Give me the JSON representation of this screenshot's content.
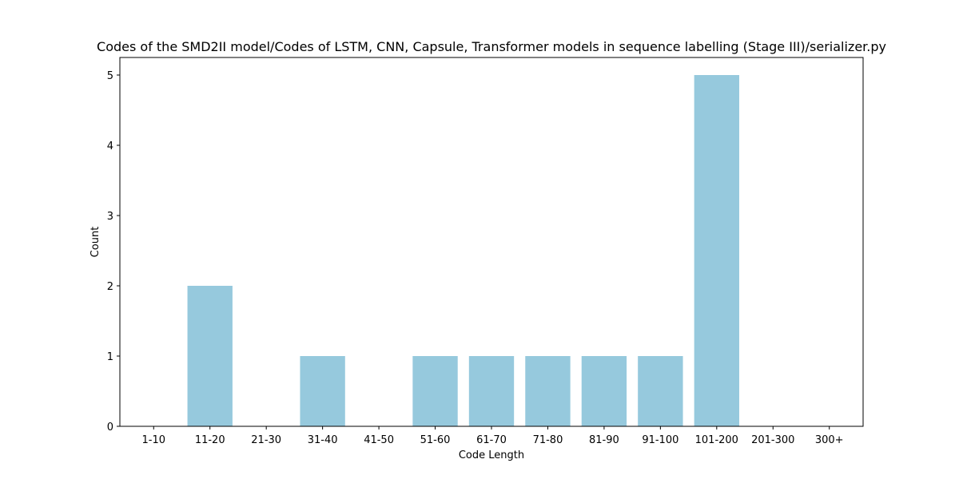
{
  "chart_data": {
    "type": "bar",
    "title": "Codes of the SMD2II model/Codes of LSTM, CNN, Capsule, Transformer models in sequence labelling (Stage III)/serializer.py",
    "xlabel": "Code Length",
    "ylabel": "Count",
    "categories": [
      "1-10",
      "11-20",
      "21-30",
      "31-40",
      "41-50",
      "51-60",
      "61-70",
      "71-80",
      "81-90",
      "91-100",
      "101-200",
      "201-300",
      "300+"
    ],
    "values": [
      0,
      2,
      0,
      1,
      0,
      1,
      1,
      1,
      1,
      1,
      5,
      0,
      0
    ],
    "ylim": [
      0,
      5.25
    ],
    "yticks": [
      0,
      1,
      2,
      3,
      4,
      5
    ],
    "bar_color": "#96c9dd",
    "grid": false
  }
}
